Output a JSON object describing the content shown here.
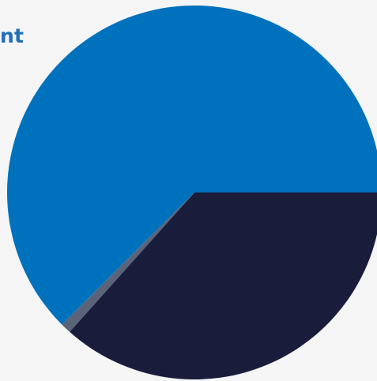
{
  "page": {
    "background": "#f5f5f6"
  },
  "title_fragment": {
    "text": "nt",
    "color": "#1f6fb9"
  },
  "chart_data": {
    "type": "pie",
    "title": "",
    "labels": [
      "",
      "",
      ""
    ],
    "values": [
      62.5,
      0.9,
      36.6
    ],
    "colors": [
      "#0071bd",
      "#5b6378",
      "#191c3b"
    ],
    "start_angle_deg": 0,
    "direction": "counterclockwise",
    "legend": "none",
    "data_labels": false
  }
}
